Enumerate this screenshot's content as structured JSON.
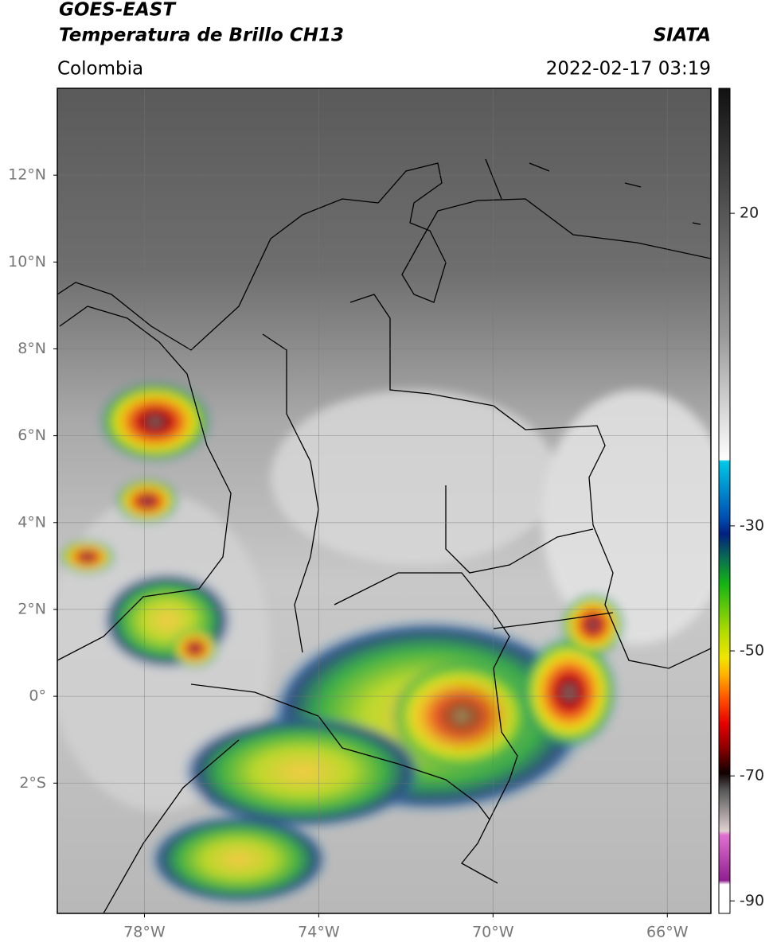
{
  "header": {
    "title_line1": "GOES-EAST",
    "title_line2": "Temperatura de Brillo CH13",
    "source": "SIATA",
    "region": "Colombia",
    "datetime": "2022-02-17 03:19"
  },
  "map": {
    "xlim": [
      -80,
      -65
    ],
    "ylim": [
      -5,
      14
    ],
    "xticks": [
      {
        "value": -78,
        "label": "78°W"
      },
      {
        "value": -74,
        "label": "74°W"
      },
      {
        "value": -70,
        "label": "70°W"
      },
      {
        "value": -66,
        "label": "66°W"
      }
    ],
    "yticks": [
      {
        "value": 12,
        "label": "12°N"
      },
      {
        "value": 10,
        "label": "10°N"
      },
      {
        "value": 8,
        "label": "8°N"
      },
      {
        "value": 6,
        "label": "6°N"
      },
      {
        "value": 4,
        "label": "4°N"
      },
      {
        "value": 2,
        "label": "2°N"
      },
      {
        "value": 0,
        "label": "0°"
      },
      {
        "value": -2,
        "label": "2°S"
      }
    ],
    "grid": true
  },
  "colorbar": {
    "lim": [
      -92,
      40
    ],
    "ticks": [
      20,
      -30,
      -50,
      -70,
      -90
    ]
  }
}
